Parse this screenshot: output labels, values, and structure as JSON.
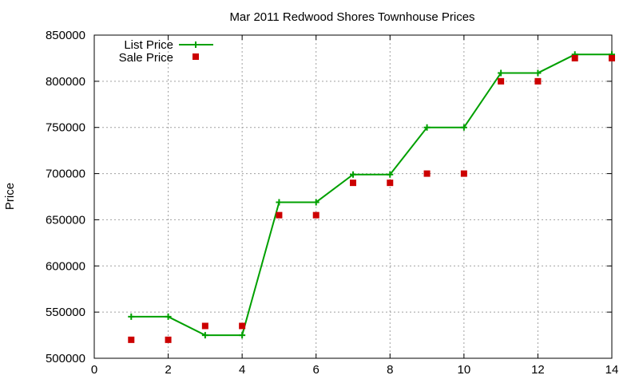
{
  "chart_data": {
    "type": "line",
    "title": "Mar 2011 Redwood Shores Townhouse Prices",
    "xlabel": "",
    "ylabel": "Price",
    "xlim": [
      0,
      14
    ],
    "ylim": [
      500000,
      850000
    ],
    "xticks": [
      0,
      2,
      4,
      6,
      8,
      10,
      12,
      14
    ],
    "yticks": [
      500000,
      550000,
      600000,
      650000,
      700000,
      750000,
      800000,
      850000
    ],
    "grid": true,
    "legend_position": "top-left",
    "series": [
      {
        "name": "List Price",
        "style": "line-with-plus-markers",
        "color": "#00a000",
        "x": [
          1,
          2,
          3,
          4,
          5,
          6,
          7,
          8,
          9,
          10,
          11,
          12,
          13,
          14
        ],
        "y": [
          545000,
          545000,
          525000,
          525000,
          669000,
          669000,
          699000,
          699000,
          750000,
          750000,
          809000,
          809000,
          829000,
          829000
        ]
      },
      {
        "name": "Sale Price",
        "style": "square-markers",
        "color": "#cc0000",
        "x": [
          1,
          2,
          3,
          4,
          5,
          6,
          7,
          8,
          9,
          10,
          11,
          12,
          13,
          14
        ],
        "y": [
          520000,
          520000,
          535000,
          535000,
          655000,
          655000,
          690000,
          690000,
          700000,
          700000,
          800000,
          800000,
          825000,
          825000
        ]
      }
    ]
  }
}
